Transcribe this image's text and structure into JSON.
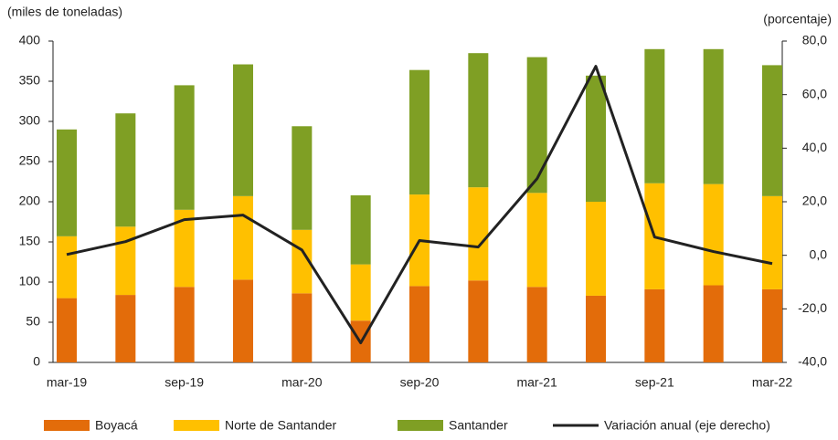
{
  "chart_data": {
    "type": "stacked-bar-line",
    "ylabel": "(miles de toneladas)",
    "y2label": "(porcentaje)",
    "categories": [
      "mar-19",
      null,
      "sep-19",
      null,
      "mar-20",
      null,
      "sep-20",
      null,
      "mar-21",
      null,
      "sep-21",
      null,
      "mar-22"
    ],
    "series": [
      {
        "name": "Boyacá",
        "color": "#e36c0a",
        "values": [
          80,
          84,
          94,
          103,
          86,
          52,
          95,
          102,
          94,
          83,
          91,
          96,
          91
        ]
      },
      {
        "name": "Norte de Santander",
        "color": "#ffc000",
        "values": [
          77,
          85,
          96,
          104,
          79,
          70,
          114,
          116,
          117,
          117,
          132,
          126,
          116
        ]
      },
      {
        "name": "Santander",
        "color": "#7f9f24",
        "values": [
          133,
          141,
          155,
          164,
          129,
          86,
          155,
          167,
          169,
          157,
          167,
          168,
          163
        ]
      },
      {
        "name": "Variación anual (eje derecho)",
        "color": "#222222",
        "axis": "y2",
        "values": [
          0.3,
          5.1,
          13.3,
          15.0,
          2.0,
          -32.7,
          5.5,
          3.1,
          28.6,
          70.6,
          6.8,
          1.4,
          -3.1
        ]
      }
    ],
    "ylim": [
      0,
      400
    ],
    "yticks": [
      0,
      50,
      100,
      150,
      200,
      250,
      300,
      350,
      400
    ],
    "y2lim": [
      -40,
      80
    ],
    "y2ticks": [
      {
        "value": -40,
        "label": "-40,0"
      },
      {
        "value": -20,
        "label": "-20,0"
      },
      {
        "value": 0,
        "label": "0,0"
      },
      {
        "value": 20,
        "label": "20,0"
      },
      {
        "value": 40,
        "label": "40,0"
      },
      {
        "value": 60,
        "label": "60,0"
      },
      {
        "value": 80,
        "label": "80,0"
      }
    ],
    "grid": false,
    "legend": "bottom"
  }
}
